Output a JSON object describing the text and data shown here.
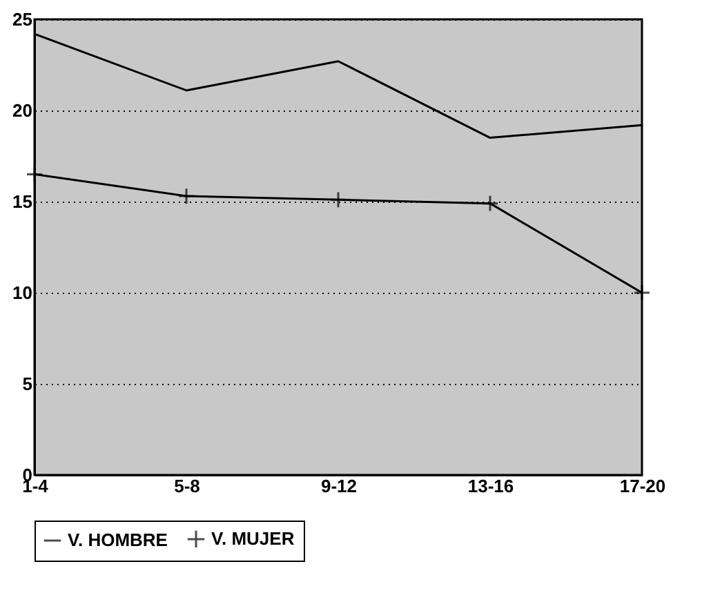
{
  "chart_data": {
    "type": "line",
    "categories": [
      "1-4",
      "5-8",
      "9-12",
      "13-16",
      "17-20"
    ],
    "series": [
      {
        "name": "V. HOMBRE",
        "color": "#000000",
        "marker": "none",
        "values": [
          24.2,
          21.1,
          22.7,
          18.5,
          19.2
        ]
      },
      {
        "name": "V. MUJER",
        "color": "#000000",
        "marker": "cross",
        "values": [
          16.5,
          15.3,
          15.1,
          14.9,
          10.0
        ]
      }
    ],
    "ylim": [
      0,
      25
    ],
    "yticks": [
      0,
      5,
      10,
      15,
      20,
      25
    ],
    "grid": "y",
    "legend": "bottom",
    "line_style": "solid"
  }
}
